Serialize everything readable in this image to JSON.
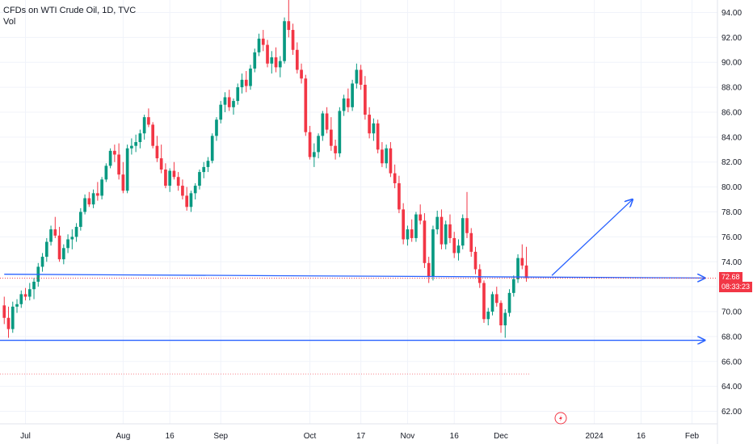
{
  "header": {
    "title": "CFDs on WTI Crude Oil, 1D, TVC",
    "volume_label": "Vol"
  },
  "price_tag": {
    "price": "72.68",
    "countdown": "08:33:23",
    "color": "#f23645"
  },
  "colors": {
    "up": "#089981",
    "down": "#f23645",
    "drawing": "#2962ff",
    "grid": "#f0f3fa"
  },
  "chart_data": {
    "type": "candlestick",
    "title": "CFDs on WTI Crude Oil, 1D, TVC",
    "ylim": [
      61.0,
      95.0
    ],
    "y_ticks": [
      "62.00",
      "64.00",
      "66.00",
      "68.00",
      "70.00",
      "72.00",
      "74.00",
      "76.00",
      "78.00",
      "80.00",
      "82.00",
      "84.00",
      "86.00",
      "88.00",
      "90.00",
      "92.00",
      "94.00"
    ],
    "x_ticks": [
      {
        "label": "Jul",
        "index": 5
      },
      {
        "label": "Aug",
        "index": 28
      },
      {
        "label": "16",
        "index": 39
      },
      {
        "label": "Sep",
        "index": 51
      },
      {
        "label": "Oct",
        "index": 72
      },
      {
        "label": "17",
        "index": 84
      },
      {
        "label": "Nov",
        "index": 95
      },
      {
        "label": "16",
        "index": 106
      },
      {
        "label": "Dec",
        "index": 117
      },
      {
        "label": "2024",
        "index": 139
      },
      {
        "label": "16",
        "index": 150
      },
      {
        "label": "Feb",
        "index": 162
      }
    ],
    "x_range": [
      -1,
      168
    ],
    "current_price": 72.68,
    "candles": [
      [
        70.5,
        71.2,
        69.0,
        69.5
      ],
      [
        69.5,
        70.4,
        67.9,
        68.6
      ],
      [
        68.6,
        70.8,
        68.3,
        70.4
      ],
      [
        70.4,
        71.0,
        69.9,
        70.6
      ],
      [
        70.6,
        71.7,
        70.3,
        71.4
      ],
      [
        71.4,
        71.9,
        70.9,
        71.2
      ],
      [
        71.2,
        72.3,
        70.9,
        71.8
      ],
      [
        71.8,
        72.7,
        71.0,
        72.4
      ],
      [
        72.4,
        73.9,
        72.0,
        73.6
      ],
      [
        73.6,
        74.7,
        73.2,
        74.4
      ],
      [
        74.4,
        75.9,
        74.0,
        75.6
      ],
      [
        75.6,
        76.9,
        75.3,
        76.6
      ],
      [
        76.6,
        77.6,
        75.9,
        76.1
      ],
      [
        76.1,
        76.8,
        74.0,
        74.2
      ],
      [
        74.2,
        75.4,
        73.8,
        75.1
      ],
      [
        75.1,
        76.2,
        74.7,
        75.8
      ],
      [
        75.8,
        76.6,
        75.0,
        76.0
      ],
      [
        76.0,
        77.1,
        75.6,
        76.8
      ],
      [
        76.8,
        78.3,
        76.5,
        78.0
      ],
      [
        78.0,
        79.4,
        77.8,
        79.1
      ],
      [
        79.1,
        79.6,
        78.4,
        78.6
      ],
      [
        78.6,
        79.8,
        78.3,
        79.5
      ],
      [
        79.5,
        80.4,
        78.9,
        79.3
      ],
      [
        79.3,
        80.8,
        79.0,
        80.6
      ],
      [
        80.6,
        81.9,
        80.4,
        81.7
      ],
      [
        81.7,
        83.1,
        81.5,
        82.9
      ],
      [
        82.9,
        83.4,
        82.0,
        82.6
      ],
      [
        82.6,
        83.5,
        80.6,
        81.0
      ],
      [
        81.0,
        82.0,
        79.5,
        79.7
      ],
      [
        79.7,
        83.4,
        79.5,
        83.1
      ],
      [
        83.1,
        83.9,
        82.6,
        83.3
      ],
      [
        83.3,
        84.2,
        82.8,
        83.6
      ],
      [
        83.6,
        84.6,
        83.1,
        84.3
      ],
      [
        84.3,
        85.8,
        83.8,
        85.6
      ],
      [
        85.6,
        86.3,
        84.8,
        85.0
      ],
      [
        85.0,
        85.2,
        83.1,
        83.3
      ],
      [
        83.3,
        84.1,
        82.0,
        82.3
      ],
      [
        82.3,
        83.4,
        81.1,
        81.4
      ],
      [
        81.4,
        81.9,
        79.9,
        80.1
      ],
      [
        80.1,
        81.5,
        79.6,
        81.3
      ],
      [
        81.3,
        82.0,
        80.6,
        80.8
      ],
      [
        80.8,
        81.2,
        79.7,
        80.1
      ],
      [
        80.1,
        80.6,
        79.0,
        79.3
      ],
      [
        79.3,
        80.0,
        78.1,
        78.4
      ],
      [
        78.4,
        79.7,
        78.0,
        79.5
      ],
      [
        79.5,
        80.3,
        79.0,
        80.1
      ],
      [
        80.1,
        81.4,
        79.8,
        81.2
      ],
      [
        81.2,
        82.0,
        80.7,
        81.6
      ],
      [
        81.6,
        82.4,
        81.2,
        82.1
      ],
      [
        82.1,
        84.3,
        81.9,
        84.1
      ],
      [
        84.1,
        85.6,
        83.7,
        85.4
      ],
      [
        85.4,
        86.9,
        85.1,
        86.6
      ],
      [
        86.6,
        87.6,
        86.0,
        87.2
      ],
      [
        87.2,
        87.8,
        86.1,
        86.4
      ],
      [
        86.4,
        87.1,
        85.8,
        86.9
      ],
      [
        86.9,
        88.3,
        86.6,
        88.0
      ],
      [
        88.0,
        89.1,
        87.5,
        88.6
      ],
      [
        88.6,
        89.3,
        87.6,
        88.1
      ],
      [
        88.1,
        89.8,
        87.8,
        89.5
      ],
      [
        89.5,
        91.1,
        89.2,
        90.8
      ],
      [
        90.8,
        92.3,
        90.5,
        91.9
      ],
      [
        91.9,
        92.6,
        90.9,
        91.4
      ],
      [
        91.4,
        91.8,
        89.6,
        89.9
      ],
      [
        89.9,
        90.9,
        89.1,
        90.4
      ],
      [
        90.4,
        91.2,
        89.2,
        89.6
      ],
      [
        89.6,
        90.5,
        88.8,
        90.1
      ],
      [
        90.1,
        93.6,
        89.9,
        93.3
      ],
      [
        93.3,
        95.0,
        92.0,
        92.6
      ],
      [
        92.6,
        93.1,
        90.6,
        91.0
      ],
      [
        91.0,
        91.6,
        89.1,
        89.4
      ],
      [
        89.4,
        89.9,
        88.3,
        88.7
      ],
      [
        88.7,
        89.0,
        84.1,
        84.4
      ],
      [
        84.4,
        84.9,
        82.2,
        82.4
      ],
      [
        82.4,
        83.5,
        81.6,
        82.8
      ],
      [
        82.8,
        84.3,
        82.3,
        84.1
      ],
      [
        84.1,
        86.1,
        83.7,
        85.9
      ],
      [
        85.9,
        86.4,
        84.3,
        84.6
      ],
      [
        84.6,
        85.6,
        82.9,
        83.3
      ],
      [
        83.3,
        83.8,
        82.2,
        82.7
      ],
      [
        82.7,
        86.4,
        82.4,
        86.1
      ],
      [
        86.1,
        87.4,
        85.7,
        87.1
      ],
      [
        87.1,
        87.9,
        86.0,
        86.4
      ],
      [
        86.4,
        88.6,
        86.1,
        88.3
      ],
      [
        88.3,
        89.9,
        87.9,
        89.4
      ],
      [
        89.4,
        89.8,
        87.8,
        88.2
      ],
      [
        88.2,
        88.9,
        85.4,
        85.8
      ],
      [
        85.8,
        86.4,
        83.9,
        84.3
      ],
      [
        84.3,
        85.5,
        83.7,
        85.1
      ],
      [
        85.1,
        85.4,
        82.7,
        83.0
      ],
      [
        83.0,
        83.6,
        81.6,
        81.9
      ],
      [
        81.9,
        83.4,
        81.5,
        83.1
      ],
      [
        83.1,
        83.6,
        80.8,
        81.1
      ],
      [
        81.1,
        81.8,
        79.9,
        80.3
      ],
      [
        80.3,
        80.9,
        77.9,
        78.2
      ],
      [
        78.2,
        78.7,
        75.4,
        75.8
      ],
      [
        75.8,
        76.9,
        75.3,
        76.6
      ],
      [
        76.6,
        77.4,
        75.6,
        75.9
      ],
      [
        75.9,
        78.0,
        75.6,
        77.8
      ],
      [
        77.8,
        78.6,
        77.0,
        77.3
      ],
      [
        77.3,
        77.9,
        73.5,
        73.9
      ],
      [
        73.9,
        74.4,
        72.3,
        72.8
      ],
      [
        72.8,
        76.9,
        72.5,
        76.6
      ],
      [
        76.6,
        78.1,
        76.2,
        77.6
      ],
      [
        77.6,
        78.2,
        75.0,
        75.4
      ],
      [
        75.4,
        77.3,
        75.0,
        77.0
      ],
      [
        77.0,
        77.8,
        75.5,
        75.9
      ],
      [
        75.9,
        76.4,
        74.3,
        74.7
      ],
      [
        74.7,
        75.8,
        74.1,
        75.3
      ],
      [
        75.3,
        77.8,
        75.0,
        77.5
      ],
      [
        77.5,
        79.6,
        75.9,
        76.3
      ],
      [
        76.3,
        76.7,
        74.4,
        74.8
      ],
      [
        74.8,
        75.2,
        73.0,
        73.4
      ],
      [
        73.4,
        73.8,
        71.9,
        72.3
      ],
      [
        72.3,
        72.5,
        69.1,
        69.4
      ],
      [
        69.4,
        70.3,
        68.9,
        70.0
      ],
      [
        70.0,
        71.6,
        69.7,
        71.4
      ],
      [
        71.4,
        72.0,
        70.4,
        70.7
      ],
      [
        70.7,
        70.9,
        68.3,
        68.9
      ],
      [
        68.9,
        70.2,
        67.9,
        69.9
      ],
      [
        69.9,
        71.8,
        69.6,
        71.5
      ],
      [
        71.5,
        72.9,
        71.2,
        72.6
      ],
      [
        72.6,
        74.6,
        72.3,
        74.3
      ],
      [
        74.3,
        75.4,
        73.4,
        73.7
      ],
      [
        73.7,
        75.2,
        72.4,
        72.68
      ]
    ]
  },
  "drawings": {
    "support_upper": {
      "from": [
        0.0,
        73.0
      ],
      "to": [
        165.0,
        72.7
      ]
    },
    "support_lower": {
      "from": [
        -1.0,
        67.7
      ],
      "to": [
        165.0,
        67.7
      ]
    },
    "projection": {
      "from": [
        129.0,
        72.9
      ],
      "to": [
        148.0,
        79.0
      ]
    }
  }
}
